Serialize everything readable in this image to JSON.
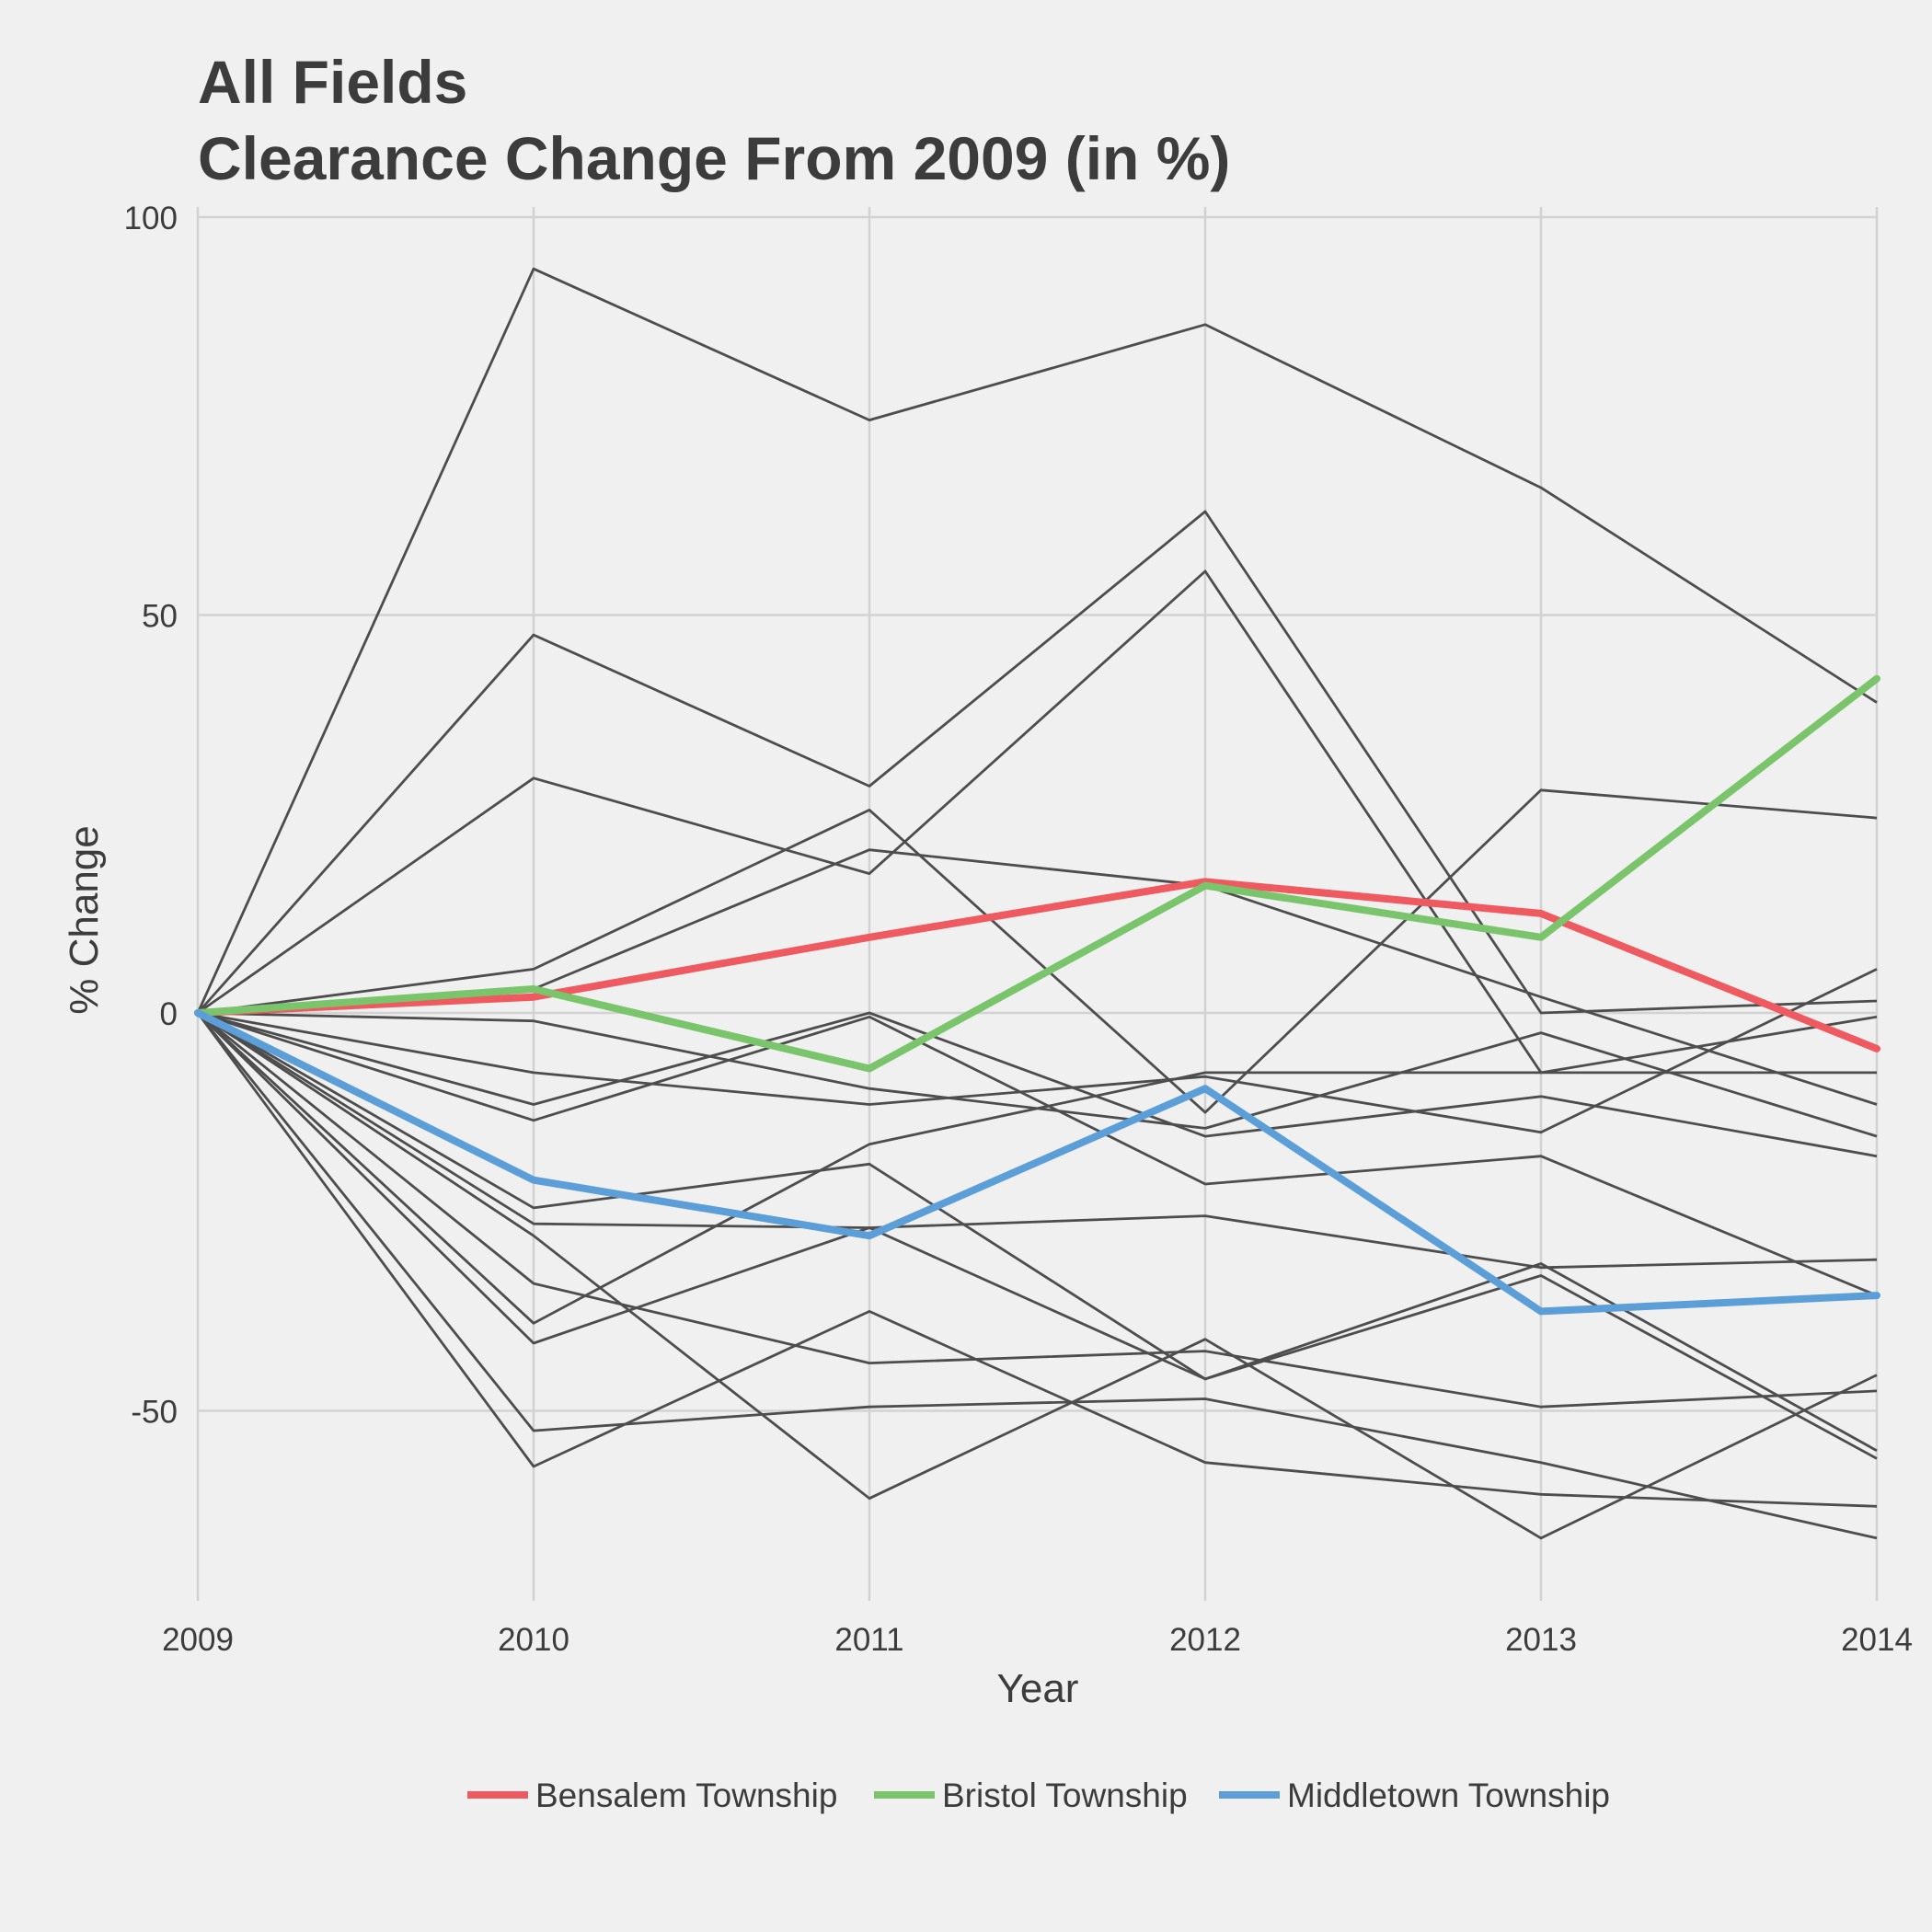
{
  "chart_data": {
    "type": "line",
    "title": "All Fields",
    "subtitle": "Clearance Change From 2009 (in %)",
    "xlabel": "Year",
    "ylabel": "% Change",
    "x": [
      2009,
      2010,
      2011,
      2012,
      2013,
      2014
    ],
    "x_tick_labels": [
      "2009",
      "2010",
      "2011",
      "2012",
      "2013",
      "2014"
    ],
    "y_ticks": [
      -50,
      0,
      50,
      100
    ],
    "y_tick_labels": [
      "-50",
      "0",
      "50",
      "100"
    ],
    "ylim": [
      -74,
      100
    ],
    "xlim": [
      2009,
      2014
    ],
    "grid": true,
    "legend_position": "bottom",
    "background_color": "#f0f0f0",
    "grid_color": "#d2d2d2",
    "other_series_color": "#4d4d4d",
    "highlighted_series": [
      {
        "name": "Bensalem Township",
        "color": "#ee5a60",
        "values": [
          0,
          2.0,
          9.5,
          16.5,
          12.5,
          -4.5
        ]
      },
      {
        "name": "Bristol Township",
        "color": "#7ac46b",
        "values": [
          0,
          3.0,
          -7.0,
          16.0,
          9.5,
          42.0
        ]
      },
      {
        "name": "Middletown Township",
        "color": "#5b9ed8",
        "values": [
          0,
          -21.0,
          -28.0,
          -9.5,
          -37.5,
          -35.5
        ]
      }
    ],
    "other_series": [
      {
        "values": [
          0,
          93.5,
          74.5,
          86.5,
          66.0,
          39.0
        ]
      },
      {
        "values": [
          0,
          47.5,
          28.5,
          63.0,
          0.0,
          1.5
        ]
      },
      {
        "values": [
          0,
          29.5,
          17.5,
          55.5,
          -7.5,
          -7.5
        ]
      },
      {
        "values": [
          0,
          5.5,
          25.5,
          -12.5,
          28.0,
          24.5
        ]
      },
      {
        "values": [
          0,
          3.0,
          20.5,
          16.0,
          2.0,
          -11.5
        ]
      },
      {
        "values": [
          0,
          -1.0,
          -9.5,
          -14.5,
          -2.5,
          -15.5
        ]
      },
      {
        "values": [
          0,
          -7.5,
          -11.5,
          -8.0,
          -15.0,
          5.5
        ]
      },
      {
        "values": [
          0,
          -11.5,
          0.0,
          -15.5,
          -10.5,
          -18.0
        ]
      },
      {
        "values": [
          0,
          -13.5,
          -0.5,
          -21.5,
          -18.0,
          -35.5
        ]
      },
      {
        "values": [
          0,
          -26.5,
          -27.0,
          -25.5,
          -32.0,
          -31.0
        ]
      },
      {
        "values": [
          0,
          -24.5,
          -19.0,
          -46.0,
          -33.0,
          -56.0
        ]
      },
      {
        "values": [
          0,
          -34.0,
          -44.0,
          -42.5,
          -49.5,
          -47.5
        ]
      },
      {
        "values": [
          0,
          -39.0,
          -16.5,
          -7.5,
          -7.5,
          -0.5
        ]
      },
      {
        "values": [
          0,
          -41.5,
          -27.0,
          -46.0,
          -31.5,
          -55.0
        ]
      },
      {
        "values": [
          0,
          -52.5,
          -49.5,
          -48.5,
          -56.5,
          -66.0
        ]
      },
      {
        "values": [
          0,
          -57.0,
          -37.5,
          -56.5,
          -60.5,
          -62.0
        ]
      },
      {
        "values": [
          0,
          -28.0,
          -61.0,
          -41.0,
          -66.0,
          -45.5
        ]
      }
    ]
  }
}
